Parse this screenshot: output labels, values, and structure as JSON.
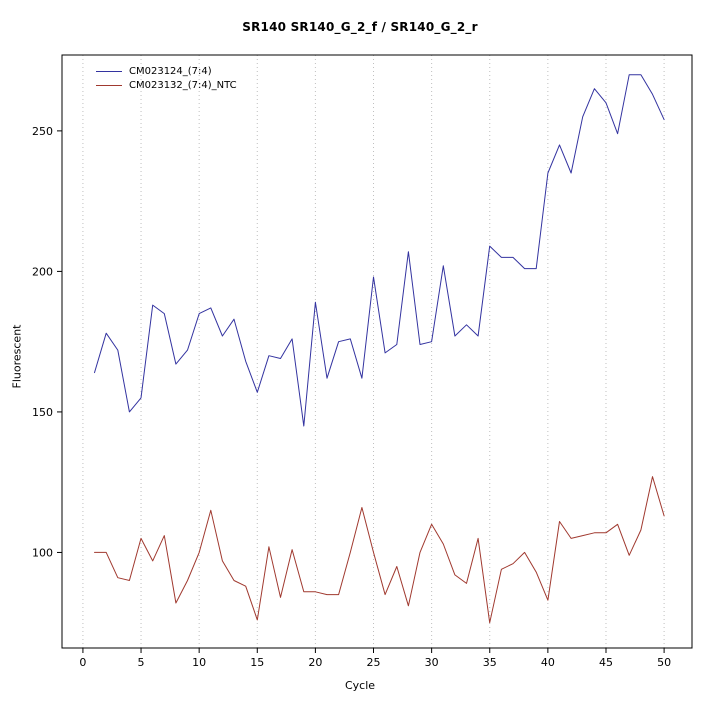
{
  "title": "SR140  SR140_G_2_f / SR140_G_2_r",
  "xlabel": "Cycle",
  "ylabel": "Fluorescent",
  "colors": {
    "series1": "#3333a0",
    "series2": "#a0392f",
    "grid": "#bfbfbf",
    "axis": "#000000",
    "background": "#ffffff"
  },
  "chart_data": {
    "type": "line",
    "title": "SR140  SR140_G_2_f / SR140_G_2_r",
    "xlabel": "Cycle",
    "ylabel": "Fluorescent",
    "xlim": [
      -1.8,
      52.4
    ],
    "ylim": [
      66,
      277
    ],
    "xticks": [
      0,
      5,
      10,
      15,
      20,
      25,
      30,
      35,
      40,
      45,
      50
    ],
    "yticks": [
      100,
      150,
      200,
      250
    ],
    "grid": "vertical-dotted",
    "legend_position": "top-left",
    "x": [
      1,
      2,
      3,
      4,
      5,
      6,
      7,
      8,
      9,
      10,
      11,
      12,
      13,
      14,
      15,
      16,
      17,
      18,
      19,
      20,
      21,
      22,
      23,
      24,
      25,
      26,
      27,
      28,
      29,
      30,
      31,
      32,
      33,
      34,
      35,
      36,
      37,
      38,
      39,
      40,
      41,
      42,
      43,
      44,
      45,
      46,
      47,
      48,
      49,
      50
    ],
    "series": [
      {
        "name": "CM023124_(7:4)",
        "color": "#3333a0",
        "values": [
          164,
          178,
          172,
          150,
          155,
          188,
          185,
          167,
          172,
          185,
          187,
          177,
          183,
          168,
          157,
          170,
          169,
          176,
          145,
          189,
          162,
          175,
          176,
          162,
          198,
          171,
          174,
          207,
          174,
          175,
          202,
          177,
          181,
          177,
          209,
          205,
          205,
          201,
          201,
          235,
          245,
          235,
          255,
          265,
          260,
          249,
          270,
          270,
          263,
          254
        ]
      },
      {
        "name": "CM023132_(7:4)_NTC",
        "color": "#a0392f",
        "values": [
          100,
          100,
          91,
          90,
          105,
          97,
          106,
          82,
          90,
          100,
          115,
          97,
          90,
          88,
          76,
          102,
          84,
          101,
          86,
          86,
          85,
          85,
          100,
          116,
          100,
          85,
          95,
          81,
          100,
          110,
          103,
          92,
          89,
          105,
          75,
          94,
          96,
          100,
          93,
          83,
          111,
          105,
          106,
          107,
          107,
          110,
          99,
          108,
          127,
          113
        ]
      }
    ]
  }
}
